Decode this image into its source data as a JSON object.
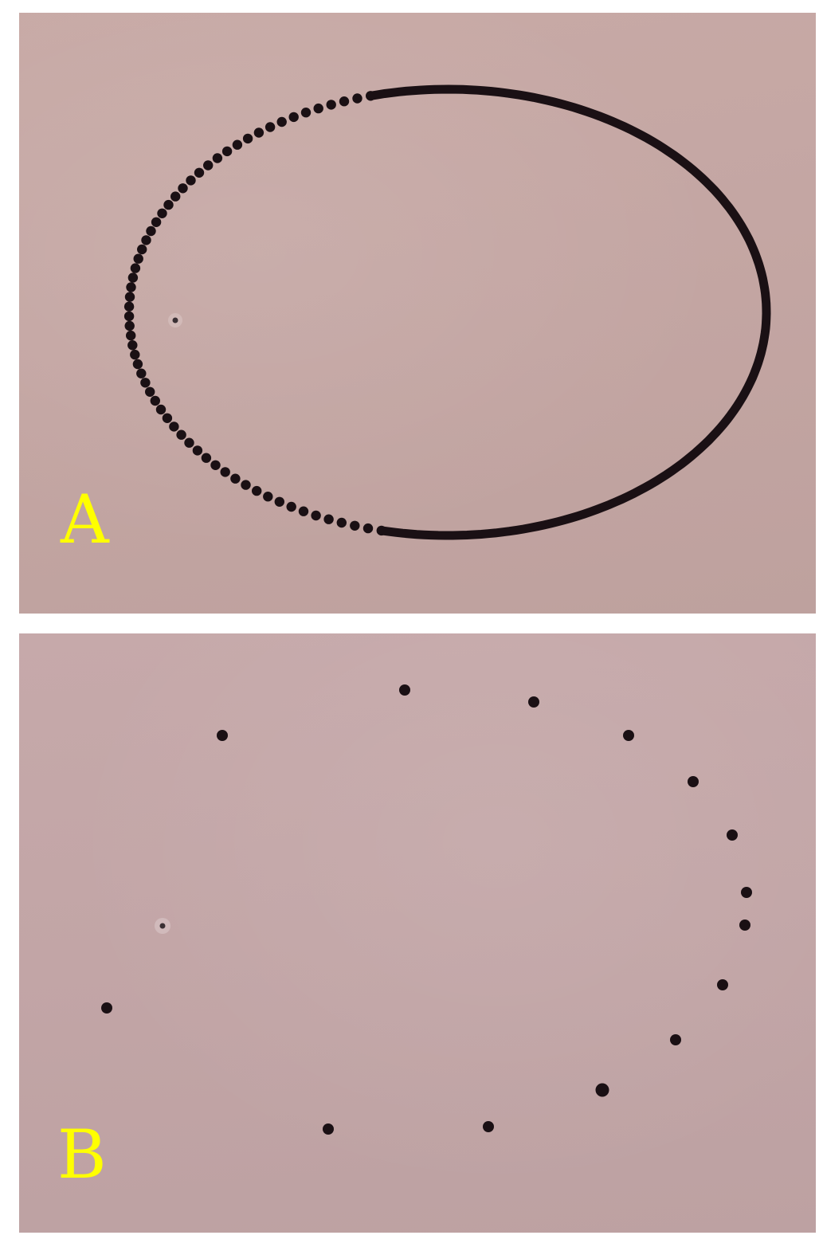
{
  "panels": [
    {
      "id": "A",
      "label": "A",
      "trace": "dotted-then-continuous-ellipse"
    },
    {
      "id": "B",
      "label": "B",
      "trace": "sparse-dots"
    }
  ],
  "colors": {
    "label": "#ffff00",
    "trace": "#1a1014",
    "pivot": "#3a3034"
  },
  "caption": ""
}
